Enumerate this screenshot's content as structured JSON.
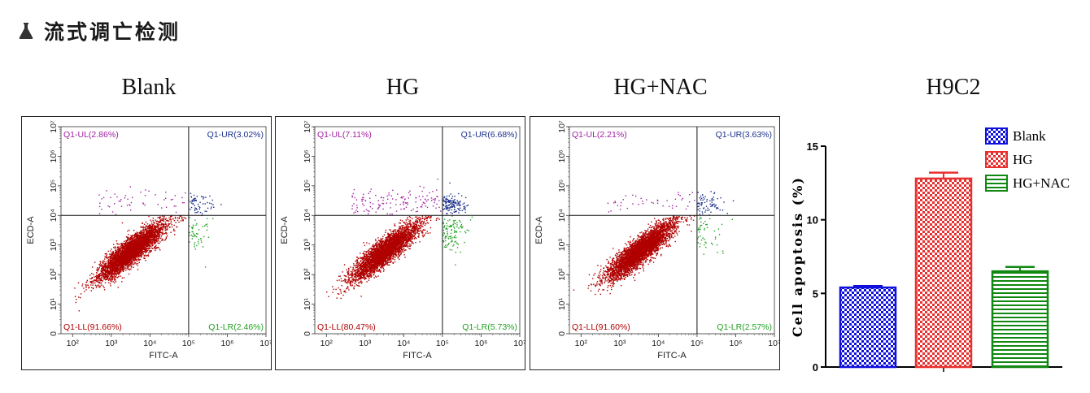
{
  "header": {
    "icon": "flask-icon",
    "title": "流式调亡检测"
  },
  "panel_titles": [
    "Blank",
    "HG",
    "HG+NAC",
    "H9C2"
  ],
  "flow_axis": {
    "xlabel": "FITC-A",
    "ylabel": "ECD-A",
    "x_ticks": [
      "10²",
      "10³",
      "10⁴",
      "10⁵",
      "10⁶",
      "10⁷"
    ],
    "y_ticks": [
      "0",
      "10¹",
      "10²",
      "10³",
      "10⁴",
      "10⁵",
      "10⁶",
      "10⁷"
    ]
  },
  "chart_data": [
    {
      "type": "scatter",
      "title": "Blank",
      "xlabel": "FITC-A",
      "ylabel": "ECD-A",
      "quadrants": [
        {
          "name": "Q1-UL",
          "label": "Q1-UL(2.86%)",
          "percent": 2.86,
          "color": "#a020a0"
        },
        {
          "name": "Q1-UR",
          "label": "Q1-UR(3.02%)",
          "percent": 3.02,
          "color": "#1a2f8a"
        },
        {
          "name": "Q1-LL",
          "label": "Q1-LL(91.66%)",
          "percent": 91.66,
          "color": "#b00000"
        },
        {
          "name": "Q1-LR",
          "label": "Q1-LR(2.46%)",
          "percent": 2.46,
          "color": "#22a022"
        }
      ]
    },
    {
      "type": "scatter",
      "title": "HG",
      "xlabel": "FITC-A",
      "ylabel": "ECD-A",
      "quadrants": [
        {
          "name": "Q1-UL",
          "label": "Q1-UL(7.11%)",
          "percent": 7.11,
          "color": "#a020a0"
        },
        {
          "name": "Q1-UR",
          "label": "Q1-UR(6.68%)",
          "percent": 6.68,
          "color": "#1a2f8a"
        },
        {
          "name": "Q1-LL",
          "label": "Q1-LL(80.47%)",
          "percent": 80.47,
          "color": "#b00000"
        },
        {
          "name": "Q1-LR",
          "label": "Q1-LR(5.73%)",
          "percent": 5.73,
          "color": "#22a022"
        }
      ]
    },
    {
      "type": "scatter",
      "title": "HG+NAC",
      "xlabel": "FITC-A",
      "ylabel": "ECD-A",
      "quadrants": [
        {
          "name": "Q1-UL",
          "label": "Q1-UL(2.21%)",
          "percent": 2.21,
          "color": "#a020a0"
        },
        {
          "name": "Q1-UR",
          "label": "Q1-UR(3.63%)",
          "percent": 3.63,
          "color": "#1a2f8a"
        },
        {
          "name": "Q1-LL",
          "label": "Q1-LL(91.60%)",
          "percent": 91.6,
          "color": "#b00000"
        },
        {
          "name": "Q1-LR",
          "label": "Q1-LR(2.57%)",
          "percent": 2.57,
          "color": "#22a022"
        }
      ]
    },
    {
      "type": "bar",
      "title": "H9C2",
      "ylabel": "Cell apoptosis (%)",
      "categories": [
        "Blank",
        "HG",
        "HG+NAC"
      ],
      "values": [
        5.4,
        12.8,
        6.5
      ],
      "errors": [
        0.1,
        0.4,
        0.3
      ],
      "colors": [
        "#1010dd",
        "#e83030",
        "#118811"
      ],
      "patterns": [
        "checker",
        "checker",
        "horizontal"
      ],
      "ylim": [
        0,
        15
      ],
      "yticks": [
        0,
        5,
        10,
        15
      ],
      "legend": "top-right"
    }
  ]
}
